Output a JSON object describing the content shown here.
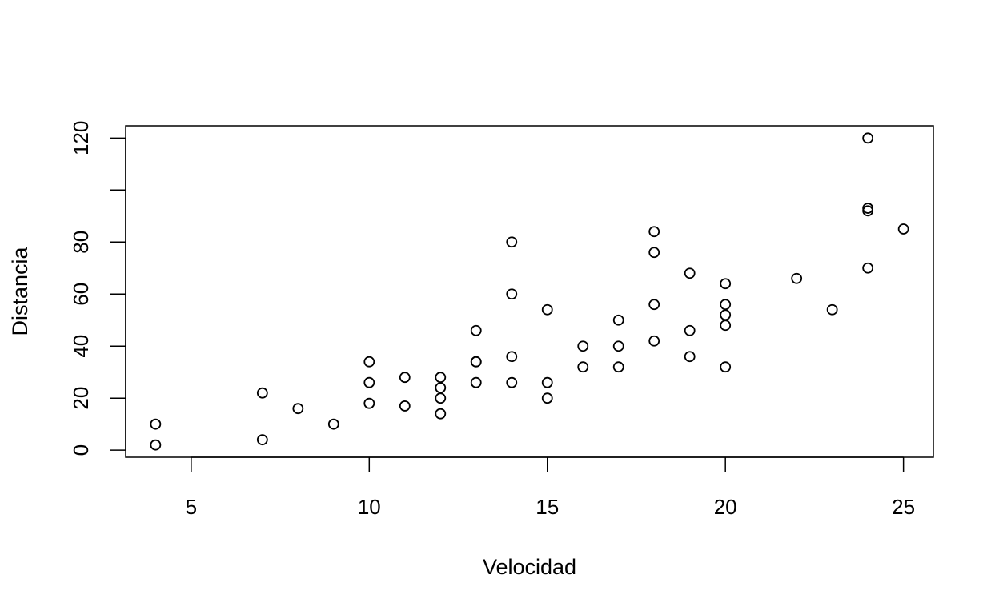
{
  "chart_data": {
    "type": "scatter",
    "title": "",
    "xlabel": "Velocidad",
    "ylabel": "Distancia",
    "xlim": [
      3.16,
      25.84
    ],
    "ylim": [
      -2.72,
      124.72
    ],
    "x_ticks": [
      5,
      10,
      15,
      20,
      25
    ],
    "x_tick_labels": [
      "5",
      "10",
      "15",
      "20",
      "25"
    ],
    "y_ticks": [
      0,
      20,
      40,
      60,
      80,
      100,
      120
    ],
    "y_tick_labels": [
      "0",
      "20",
      "40",
      "60",
      "80",
      "",
      "120"
    ],
    "grid": false,
    "legend": "none",
    "marker": "open-circle",
    "colors": {
      "marker": "#000000",
      "axis": "#000000",
      "background": "#ffffff"
    },
    "series": [
      {
        "x": [
          4,
          4,
          7,
          7,
          8,
          9,
          10,
          10,
          10,
          11,
          11,
          12,
          12,
          12,
          12,
          13,
          13,
          13,
          13,
          14,
          14,
          14,
          14,
          15,
          15,
          15,
          16,
          16,
          17,
          17,
          17,
          18,
          18,
          18,
          18,
          19,
          19,
          19,
          20,
          20,
          20,
          20,
          20,
          22,
          23,
          24,
          24,
          24,
          24,
          25
        ],
        "y": [
          2,
          10,
          4,
          22,
          16,
          10,
          18,
          26,
          34,
          17,
          28,
          14,
          20,
          24,
          28,
          26,
          34,
          34,
          46,
          26,
          36,
          60,
          80,
          20,
          26,
          54,
          32,
          40,
          32,
          40,
          50,
          42,
          56,
          76,
          84,
          36,
          46,
          68,
          32,
          48,
          52,
          56,
          64,
          66,
          54,
          70,
          92,
          93,
          120,
          85
        ]
      }
    ]
  }
}
